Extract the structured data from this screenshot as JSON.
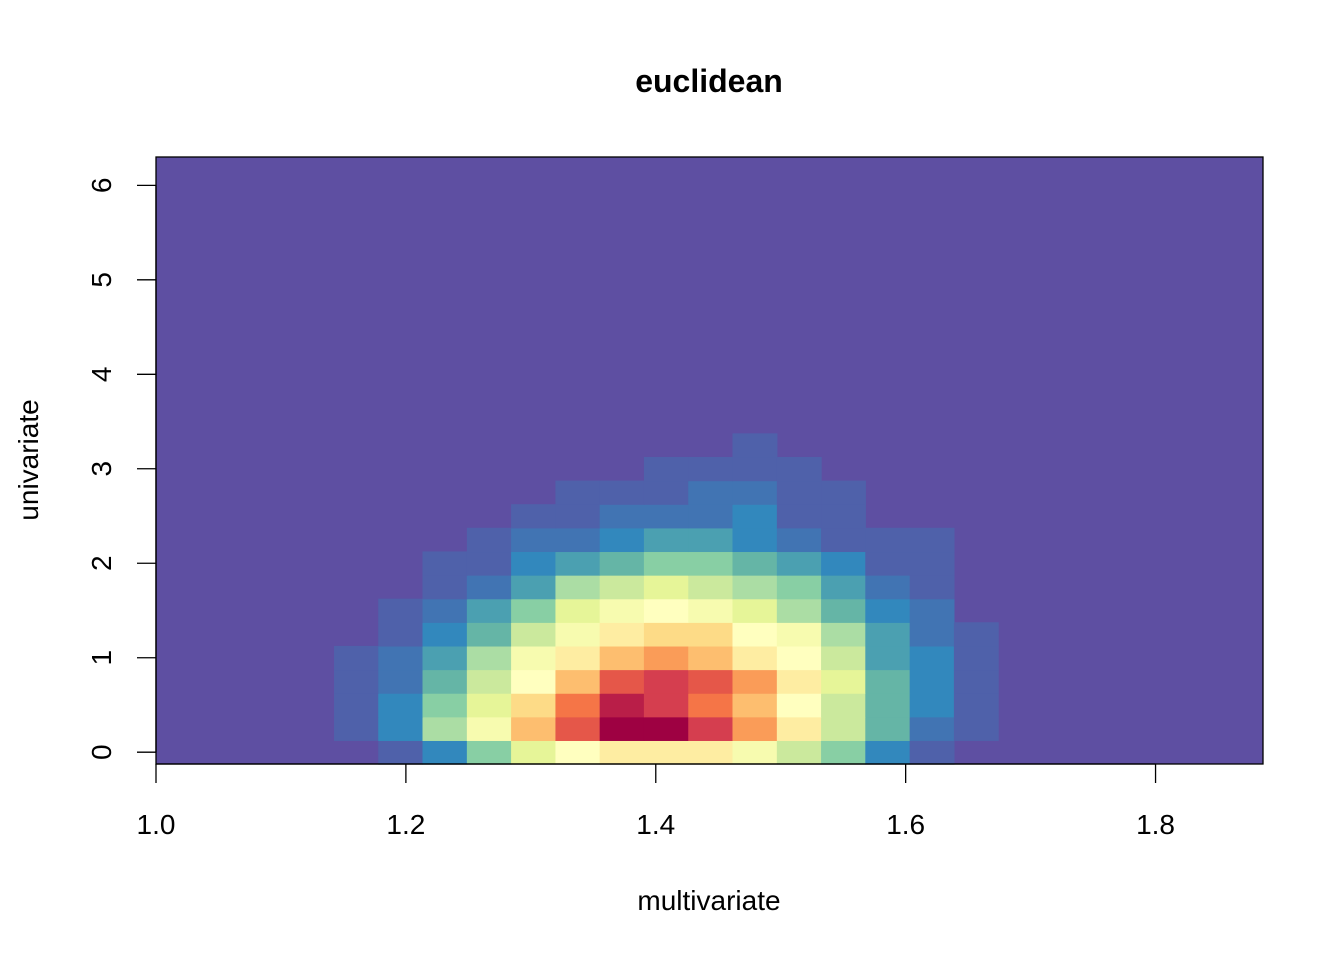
{
  "chart_data": {
    "type": "heatmap",
    "title": "euclidean",
    "xlabel": "multivariate",
    "ylabel": "univariate",
    "xlim": [
      1.0,
      1.886
    ],
    "ylim": [
      -0.125,
      6.3
    ],
    "x_ticks": [
      "1.0",
      "1.2",
      "1.4",
      "1.6",
      "1.8"
    ],
    "x_tick_values": [
      1.0,
      1.2,
      1.4,
      1.6,
      1.8
    ],
    "y_ticks": [
      "0",
      "1",
      "2",
      "3",
      "4",
      "5",
      "6"
    ],
    "y_tick_values": [
      0,
      1,
      2,
      3,
      4,
      5,
      6
    ],
    "grid": false,
    "legend": "none",
    "background_color": "#5E4FA2",
    "colormap": "Spectral (low = purple, high = dark red)",
    "color_levels": [
      "#5E4FA2",
      "#4F61AA",
      "#4174B3",
      "#3288BD",
      "#4BA0B1",
      "#65B5A6",
      "#88CFA4",
      "#ABDDA4",
      "#CBE99D",
      "#E6F598",
      "#F7FBAF",
      "#FFFFBF",
      "#FEEDA2",
      "#FDDB87",
      "#FDBE6F",
      "#FA9C58",
      "#F57547",
      "#E55749",
      "#D53E4F",
      "#B91E48",
      "#9E0142"
    ],
    "x_bin_edges": [
      1.1425,
      1.1779,
      1.2133,
      1.2488,
      1.2842,
      1.3197,
      1.3551,
      1.3905,
      1.426,
      1.4614,
      1.4969,
      1.5323,
      1.5677,
      1.6032,
      1.6386,
      1.674
    ],
    "y_bin_height": 0.25,
    "y_bins_start": -0.125,
    "rows_bottom_to_top": [
      [
        0,
        1,
        3,
        6,
        9,
        11,
        12,
        12,
        12,
        10,
        8,
        6,
        3,
        1,
        0
      ],
      [
        1,
        3,
        7,
        10,
        14,
        17,
        20,
        20,
        18,
        15,
        12,
        8,
        5,
        2,
        1
      ],
      [
        1,
        3,
        6,
        9,
        13,
        16,
        19,
        18,
        16,
        14,
        11,
        8,
        5,
        3,
        1
      ],
      [
        1,
        2,
        5,
        8,
        11,
        14,
        17,
        18,
        17,
        15,
        12,
        9,
        5,
        3,
        1
      ],
      [
        1,
        2,
        4,
        7,
        10,
        12,
        14,
        15,
        14,
        12,
        11,
        8,
        4,
        3,
        1
      ],
      [
        0,
        1,
        3,
        5,
        8,
        10,
        12,
        13,
        13,
        11,
        10,
        7,
        4,
        2,
        1
      ],
      [
        0,
        1,
        2,
        4,
        6,
        9,
        10,
        11,
        10,
        9,
        7,
        5,
        3,
        2,
        0
      ],
      [
        0,
        0,
        1,
        2,
        4,
        7,
        8,
        9,
        8,
        7,
        6,
        4,
        2,
        1,
        0
      ],
      [
        0,
        0,
        1,
        1,
        3,
        4,
        5,
        6,
        6,
        5,
        4,
        3,
        1,
        1,
        0
      ],
      [
        0,
        0,
        0,
        1,
        2,
        2,
        3,
        4,
        4,
        3,
        2,
        1,
        1,
        1,
        0
      ],
      [
        0,
        0,
        0,
        0,
        1,
        1,
        2,
        2,
        2,
        3,
        1,
        1,
        0,
        0,
        0
      ],
      [
        0,
        0,
        0,
        0,
        0,
        1,
        1,
        1,
        2,
        2,
        1,
        1,
        0,
        0,
        0
      ],
      [
        0,
        0,
        0,
        0,
        0,
        0,
        0,
        1,
        1,
        1,
        1,
        0,
        0,
        0,
        0
      ],
      [
        0,
        0,
        0,
        0,
        0,
        0,
        0,
        0,
        0,
        1,
        0,
        0,
        0,
        0,
        0
      ]
    ]
  }
}
